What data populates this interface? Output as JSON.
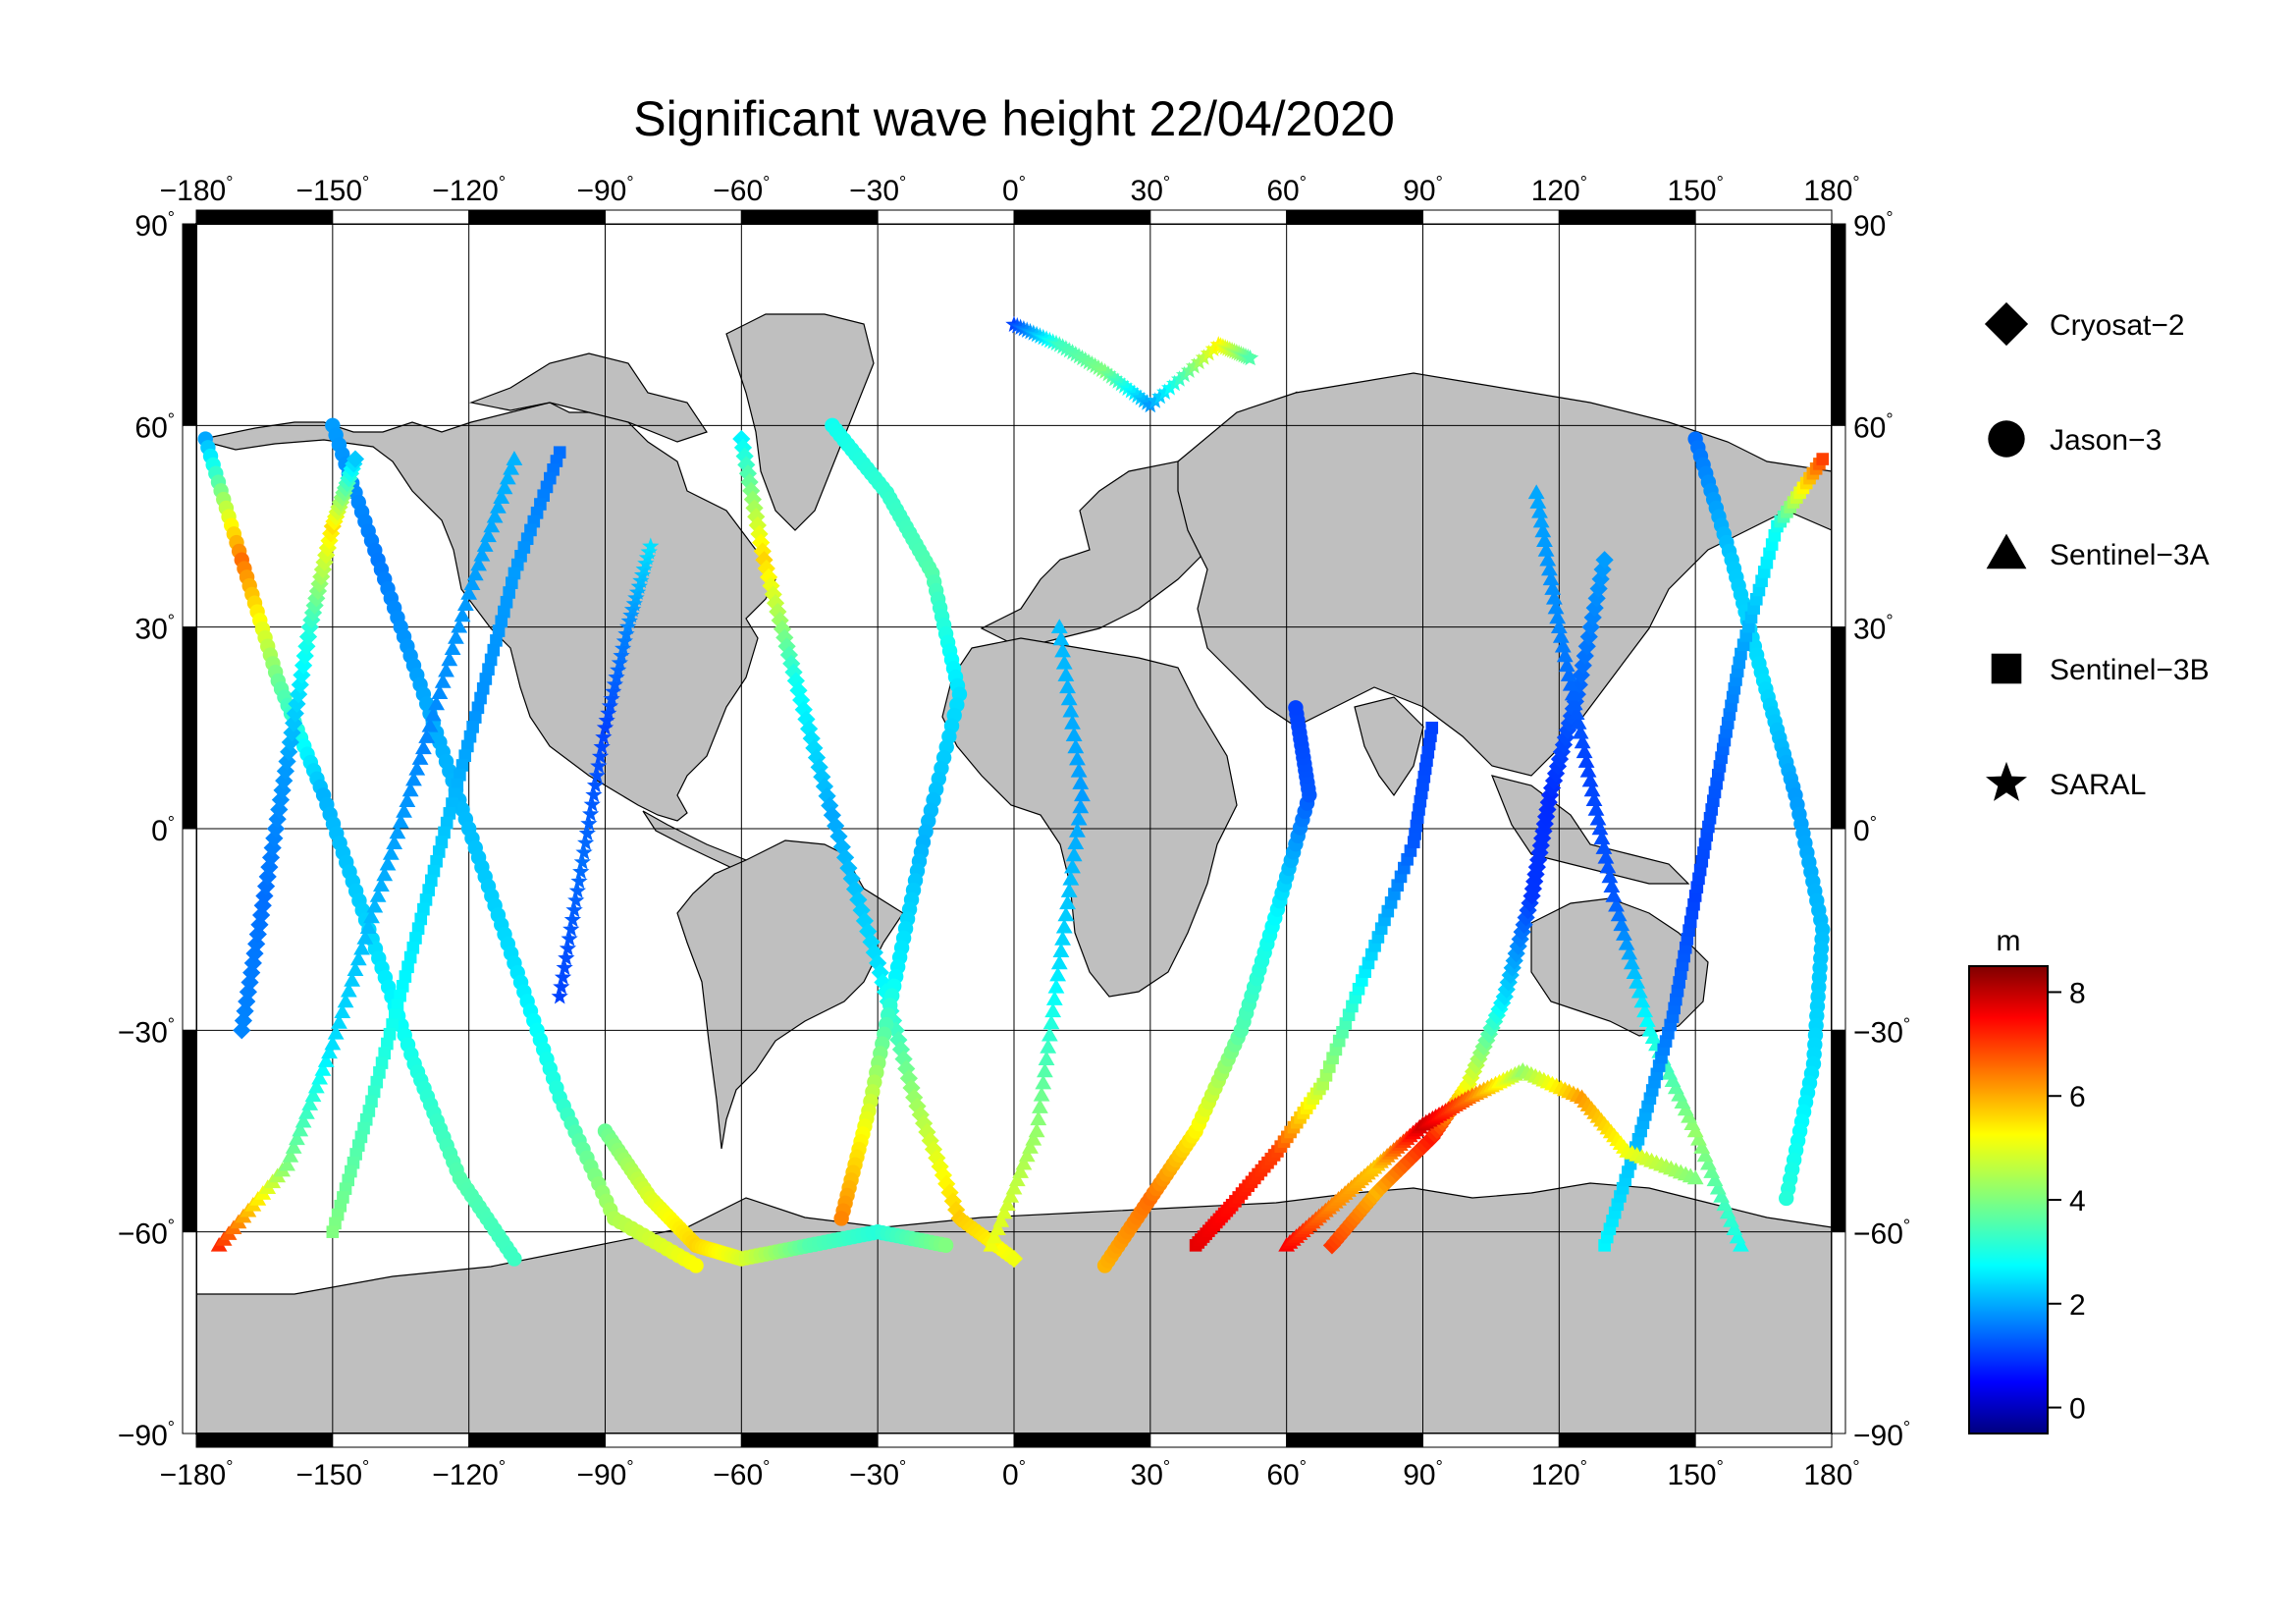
{
  "title": "Significant wave height 22/04/2020",
  "map": {
    "lon_ticks": [
      -180,
      -150,
      -120,
      -90,
      -60,
      -30,
      0,
      30,
      60,
      90,
      120,
      150,
      180
    ],
    "lon_tick_labels": [
      "−180",
      "−150",
      "−120",
      "−90",
      "−60",
      "−30",
      "0",
      "30",
      "60",
      "90",
      "120",
      "150",
      "180"
    ],
    "lat_ticks": [
      90,
      60,
      30,
      0,
      -30,
      -60,
      -90
    ],
    "lat_tick_labels": [
      "90",
      "60",
      "30",
      "0",
      "−30",
      "−60",
      "−90"
    ],
    "degree_symbol": "°",
    "lon_range": [
      -180,
      180
    ],
    "lat_range": [
      -90,
      90
    ],
    "grid": true,
    "land_color": "#bfbfbf",
    "ocean_color": "#ffffff"
  },
  "legend": {
    "placement": "right",
    "items": [
      {
        "label": "Cryosat−2",
        "marker": "diamond"
      },
      {
        "label": "Jason−3",
        "marker": "circle"
      },
      {
        "label": "Sentinel−3A",
        "marker": "triangle"
      },
      {
        "label": "Sentinel−3B",
        "marker": "square"
      },
      {
        "label": "SARAL",
        "marker": "star"
      }
    ]
  },
  "colorbar": {
    "unit": "m",
    "min": -0.5,
    "max": 8.5,
    "tick_values": [
      0,
      2,
      4,
      6,
      8
    ],
    "tick_labels": [
      "0",
      "2",
      "4",
      "6",
      "8"
    ],
    "colormap": "jet"
  },
  "tracks": [
    {
      "sat": "Jason−3",
      "marker": "circle",
      "points": [
        [
          -178,
          58,
          2.1
        ],
        [
          -170,
          40,
          6.4
        ],
        [
          -162,
          22,
          3.8
        ],
        [
          -152,
          5,
          2.2
        ],
        [
          -142,
          -15,
          2.5
        ],
        [
          -132,
          -35,
          3.1
        ],
        [
          -122,
          -52,
          3.6
        ],
        [
          -110,
          -64,
          3.4
        ]
      ]
    },
    {
      "sat": "Jason−3",
      "marker": "circle",
      "points": [
        [
          -150,
          60,
          2.0
        ],
        [
          -140,
          40,
          1.7
        ],
        [
          -130,
          20,
          2.1
        ],
        [
          -120,
          0,
          2.3
        ],
        [
          -110,
          -20,
          2.6
        ],
        [
          -100,
          -40,
          3.2
        ],
        [
          -88,
          -58,
          4.4
        ],
        [
          -70,
          -65,
          5.1
        ]
      ]
    },
    {
      "sat": "Sentinel−3A",
      "marker": "triangle",
      "points": [
        [
          -175,
          -62,
          7.0
        ],
        [
          -160,
          -50,
          4.0
        ],
        [
          -150,
          -32,
          2.6
        ],
        [
          -140,
          -10,
          2.2
        ],
        [
          -130,
          12,
          1.8
        ],
        [
          -120,
          35,
          2.0
        ],
        [
          -110,
          55,
          2.2
        ]
      ]
    },
    {
      "sat": "Sentinel−3B",
      "marker": "square",
      "points": [
        [
          -100,
          56,
          1.6
        ],
        [
          -110,
          38,
          2.0
        ],
        [
          -118,
          18,
          1.9
        ],
        [
          -126,
          -2,
          2.4
        ],
        [
          -134,
          -22,
          2.8
        ],
        [
          -142,
          -42,
          3.4
        ],
        [
          -150,
          -60,
          4.0
        ]
      ]
    },
    {
      "sat": "Cryosat−2",
      "marker": "diamond",
      "points": [
        [
          -60,
          58,
          2.8
        ],
        [
          -55,
          40,
          5.5
        ],
        [
          -48,
          22,
          3.0
        ],
        [
          -40,
          2,
          2.1
        ],
        [
          -30,
          -20,
          2.6
        ],
        [
          -22,
          -40,
          4.2
        ],
        [
          -12,
          -58,
          5.6
        ],
        [
          0,
          -64,
          5.0
        ]
      ]
    },
    {
      "sat": "Jason−3",
      "marker": "circle",
      "points": [
        [
          -40,
          60,
          3.0
        ],
        [
          -28,
          50,
          3.3
        ],
        [
          -18,
          38,
          3.6
        ],
        [
          -12,
          20,
          2.6
        ],
        [
          -20,
          -2,
          2.2
        ],
        [
          -26,
          -22,
          2.8
        ],
        [
          -32,
          -42,
          4.8
        ],
        [
          -38,
          -58,
          6.2
        ]
      ]
    },
    {
      "sat": "Sentinel−3A",
      "marker": "triangle",
      "points": [
        [
          -5,
          -62,
          5.0
        ],
        [
          5,
          -45,
          4.2
        ],
        [
          10,
          -20,
          2.6
        ],
        [
          15,
          5,
          2.0
        ],
        [
          10,
          30,
          2.3
        ]
      ]
    },
    {
      "sat": "Jason−3",
      "marker": "circle",
      "points": [
        [
          20,
          -65,
          5.8
        ],
        [
          30,
          -55,
          6.4
        ],
        [
          40,
          -45,
          5.2
        ],
        [
          50,
          -30,
          3.6
        ],
        [
          58,
          -12,
          2.8
        ],
        [
          65,
          5,
          1.4
        ],
        [
          62,
          18,
          1.2
        ]
      ]
    },
    {
      "sat": "Sentinel−3B",
      "marker": "square",
      "points": [
        [
          40,
          -62,
          7.6
        ],
        [
          48,
          -56,
          7.3
        ],
        [
          58,
          -48,
          6.8
        ],
        [
          68,
          -38,
          4.4
        ],
        [
          78,
          -20,
          2.6
        ],
        [
          88,
          -2,
          1.4
        ],
        [
          92,
          15,
          1.2
        ]
      ]
    },
    {
      "sat": "Cryosat−2",
      "marker": "diamond",
      "points": [
        [
          70,
          -62,
          6.9
        ],
        [
          80,
          -54,
          5.8
        ],
        [
          92,
          -46,
          7.2
        ],
        [
          100,
          -38,
          5.0
        ],
        [
          108,
          -25,
          2.6
        ],
        [
          114,
          -10,
          1.1
        ],
        [
          118,
          5,
          1.0
        ],
        [
          124,
          20,
          1.5
        ],
        [
          130,
          40,
          2.0
        ]
      ]
    },
    {
      "sat": "Sentinel−3A",
      "marker": "triangle",
      "points": [
        [
          160,
          -62,
          3.0
        ],
        [
          150,
          -45,
          4.2
        ],
        [
          140,
          -30,
          3.0
        ],
        [
          132,
          -10,
          1.4
        ],
        [
          126,
          10,
          1.2
        ],
        [
          120,
          30,
          1.8
        ],
        [
          115,
          50,
          2.1
        ]
      ]
    },
    {
      "sat": "Jason−3",
      "marker": "circle",
      "points": [
        [
          150,
          58,
          1.6
        ],
        [
          158,
          40,
          2.4
        ],
        [
          165,
          22,
          2.6
        ],
        [
          172,
          5,
          2.0
        ],
        [
          178,
          -15,
          2.3
        ],
        [
          176,
          -35,
          2.6
        ],
        [
          170,
          -55,
          3.2
        ]
      ]
    },
    {
      "sat": "Sentinel−3B",
      "marker": "square",
      "points": [
        [
          130,
          -62,
          2.8
        ],
        [
          138,
          -45,
          2.2
        ],
        [
          145,
          -28,
          1.6
        ],
        [
          150,
          -10,
          1.2
        ],
        [
          155,
          8,
          1.4
        ],
        [
          160,
          26,
          2.0
        ],
        [
          168,
          45,
          3.0
        ],
        [
          178,
          55,
          6.8
        ]
      ]
    },
    {
      "sat": "SARAL",
      "marker": "star",
      "points": [
        [
          0,
          75,
          1.2
        ],
        [
          10,
          72,
          3.4
        ],
        [
          20,
          68,
          4.0
        ],
        [
          30,
          63,
          2.0
        ],
        [
          45,
          72,
          5.2
        ],
        [
          52,
          70,
          3.6
        ]
      ]
    },
    {
      "sat": "SARAL",
      "marker": "star",
      "points": [
        [
          -100,
          -25,
          1.2
        ],
        [
          -95,
          -5,
          1.6
        ],
        [
          -90,
          15,
          1.2
        ],
        [
          -85,
          30,
          1.8
        ],
        [
          -80,
          42,
          2.6
        ]
      ]
    },
    {
      "sat": "Jason−3",
      "marker": "circle",
      "points": [
        [
          -90,
          -45,
          3.8
        ],
        [
          -80,
          -55,
          4.8
        ],
        [
          -70,
          -62,
          5.5
        ],
        [
          -60,
          -64,
          4.8
        ],
        [
          -45,
          -62,
          3.6
        ],
        [
          -30,
          -60,
          3.2
        ],
        [
          -15,
          -62,
          4.0
        ]
      ]
    },
    {
      "sat": "Sentinel−3A",
      "marker": "triangle",
      "points": [
        [
          60,
          -62,
          7.4
        ],
        [
          70,
          -56,
          6.2
        ],
        [
          80,
          -50,
          5.6
        ],
        [
          90,
          -44,
          7.8
        ],
        [
          100,
          -40,
          6.4
        ],
        [
          112,
          -36,
          4.2
        ],
        [
          125,
          -40,
          6.0
        ],
        [
          135,
          -48,
          5.0
        ],
        [
          150,
          -52,
          4.0
        ]
      ]
    },
    {
      "sat": "Cryosat−2",
      "marker": "diamond",
      "points": [
        [
          -170,
          -30,
          1.8
        ],
        [
          -165,
          -10,
          1.6
        ],
        [
          -160,
          10,
          2.0
        ],
        [
          -155,
          30,
          3.2
        ],
        [
          -150,
          45,
          5.4
        ],
        [
          -145,
          55,
          2.4
        ]
      ]
    }
  ]
}
